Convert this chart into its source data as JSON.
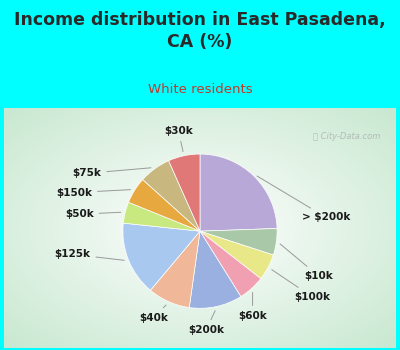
{
  "title": "Income distribution in East Pasadena,\nCA (%)",
  "subtitle": "White residents",
  "title_color": "#2a2a2a",
  "subtitle_color": "#c0392b",
  "background_top": "#00ffff",
  "watermark": "City-Data.com",
  "labels": [
    "> $200k",
    "$10k",
    "$100k",
    "$60k",
    "$200k",
    "$40k",
    "$125k",
    "$50k",
    "$150k",
    "$75k",
    "$30k"
  ],
  "values": [
    22,
    5,
    5,
    5,
    10,
    8,
    14,
    4,
    5,
    6,
    6
  ],
  "colors": [
    "#b8a8d8",
    "#a8c8a8",
    "#e8e888",
    "#f0a0b0",
    "#9ab0e0",
    "#f0b898",
    "#a8c8f0",
    "#c8e880",
    "#e8a840",
    "#c8b880",
    "#e07878"
  ],
  "label_fontsize": 7.5,
  "title_fontsize": 12.5
}
